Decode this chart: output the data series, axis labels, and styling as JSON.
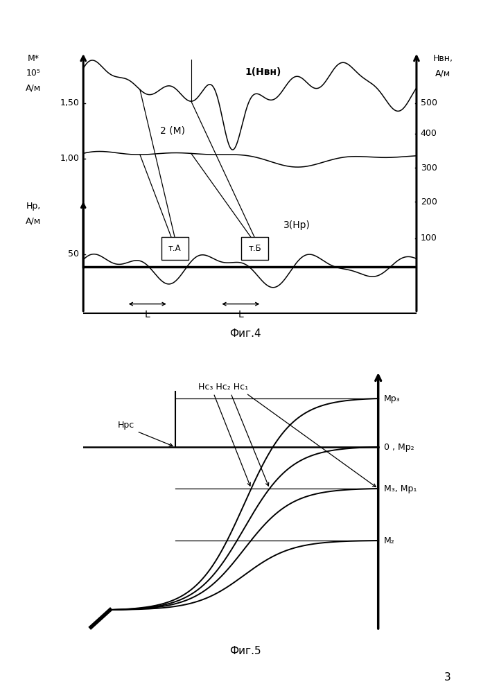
{
  "fig4": {
    "title": "Фиг.4",
    "left_top_label": [
      "M*",
      "10⁵",
      "А/м"
    ],
    "left_bot_label": [
      "Hр,",
      "А/м"
    ],
    "right_label": [
      "Hвн,",
      "А/м"
    ],
    "tick_150": "1,50",
    "tick_100": "1,00",
    "tick_50": "50",
    "right_ticks": [
      "500",
      "400",
      "300",
      "200",
      "100"
    ],
    "curve1_label": "1(Hвн)",
    "curve2_label": "2 (М)",
    "curve3_label": "3(Hр)",
    "tA": "т.А",
    "tB": "т.Б",
    "L": "L"
  },
  "fig5": {
    "title": "Фиг.5",
    "right_labels": [
      "Mр₃",
      "0 , Mр₂",
      "M₃, Mр₁",
      "M₂"
    ],
    "Hrc_label": "Hрc",
    "Hc_label": "Hс₃ Hс₂ Hс₁"
  },
  "page_num": "3"
}
